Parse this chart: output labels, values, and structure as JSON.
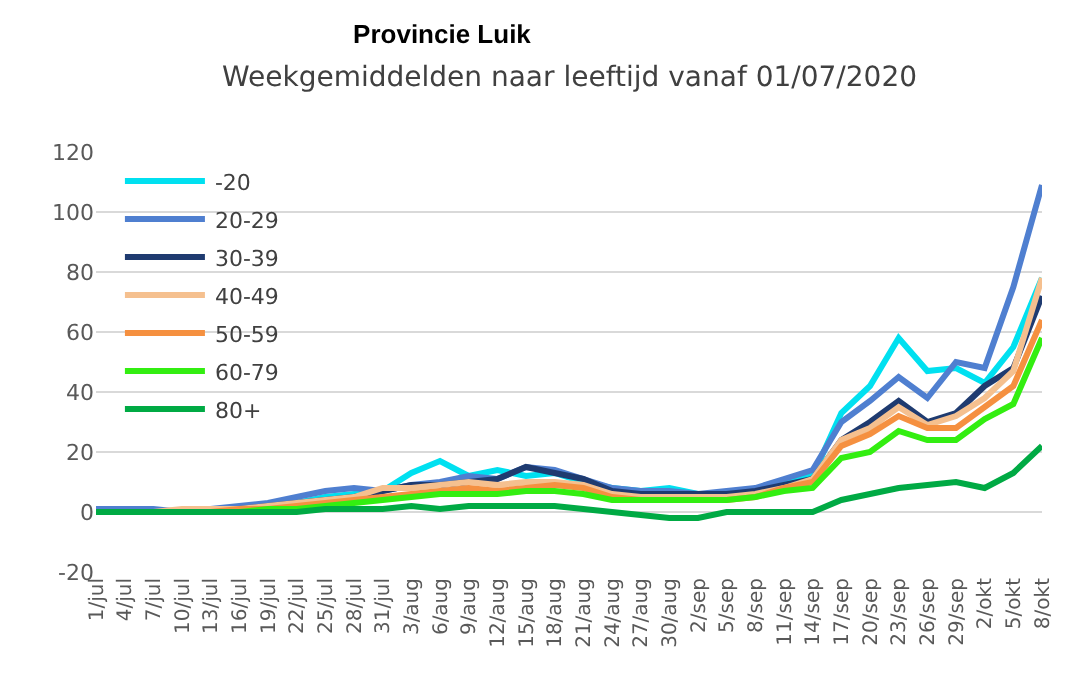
{
  "chart_data": {
    "type": "line",
    "title": "Provincie Luik",
    "subtitle": "Weekgemiddelden naar leeftijd vanaf 01/07/2020",
    "categories": [
      "1/jul",
      "4/jul",
      "7/jul",
      "10/jul",
      "13/jul",
      "16/jul",
      "19/jul",
      "22/jul",
      "25/jul",
      "28/jul",
      "31/jul",
      "3/aug",
      "6/aug",
      "9/aug",
      "12/aug",
      "15/aug",
      "18/aug",
      "21/aug",
      "24/aug",
      "27/aug",
      "30/aug",
      "2/sep",
      "5/sep",
      "8/sep",
      "11/sep",
      "14/sep",
      "17/sep",
      "20/sep",
      "23/sep",
      "26/sep",
      "29/sep",
      "2/okt",
      "5/okt",
      "8/okt"
    ],
    "series": [
      {
        "name": "-20",
        "color": "#00e0f0",
        "values": [
          null,
          null,
          null,
          null,
          null,
          null,
          2,
          3,
          5,
          6,
          7,
          13,
          17,
          12,
          14,
          12,
          13,
          10,
          8,
          7,
          8,
          6,
          6,
          7,
          10,
          12,
          33,
          42,
          58,
          47,
          48,
          43,
          55,
          78
        ]
      },
      {
        "name": "20-29",
        "color": "#4f7fd0",
        "values": [
          1,
          1,
          1,
          0,
          1,
          2,
          3,
          5,
          7,
          8,
          7,
          9,
          10,
          12,
          11,
          15,
          14,
          11,
          8,
          7,
          7,
          6,
          7,
          8,
          11,
          14,
          30,
          37,
          45,
          38,
          50,
          48,
          75,
          109
        ]
      },
      {
        "name": "30-39",
        "color": "#1f3b70",
        "values": [
          0,
          0,
          0,
          0,
          1,
          1,
          2,
          3,
          4,
          5,
          7,
          9,
          9,
          10,
          11,
          15,
          13,
          11,
          7,
          6,
          6,
          6,
          6,
          7,
          9,
          11,
          24,
          30,
          37,
          30,
          33,
          42,
          48,
          72
        ]
      },
      {
        "name": "40-49",
        "color": "#f5c08f",
        "values": [
          0,
          0,
          0,
          1,
          1,
          1,
          2,
          3,
          4,
          5,
          8,
          8,
          9,
          10,
          9,
          10,
          10,
          9,
          6,
          5,
          5,
          5,
          5,
          6,
          8,
          11,
          24,
          28,
          35,
          29,
          32,
          38,
          47,
          78
        ]
      },
      {
        "name": "50-59",
        "color": "#f59040",
        "values": [
          0,
          0,
          0,
          0,
          0,
          1,
          1,
          2,
          3,
          4,
          5,
          6,
          7,
          8,
          7,
          8,
          9,
          8,
          5,
          4,
          4,
          4,
          4,
          5,
          8,
          10,
          22,
          26,
          32,
          28,
          28,
          35,
          42,
          64
        ]
      },
      {
        "name": "60-79",
        "color": "#33ee11",
        "values": [
          null,
          null,
          null,
          null,
          0,
          0,
          1,
          1,
          2,
          3,
          4,
          5,
          6,
          6,
          6,
          7,
          7,
          6,
          4,
          4,
          4,
          4,
          4,
          5,
          7,
          8,
          18,
          20,
          27,
          24,
          24,
          31,
          36,
          58
        ]
      },
      {
        "name": "80+",
        "color": "#00aa44",
        "values": [
          0,
          0,
          0,
          0,
          0,
          0,
          0,
          0,
          1,
          1,
          1,
          2,
          1,
          2,
          2,
          2,
          2,
          1,
          0,
          -1,
          -2,
          -2,
          0,
          0,
          0,
          0,
          4,
          6,
          8,
          9,
          10,
          8,
          13,
          22
        ]
      }
    ],
    "ylim": [
      -20,
      120
    ],
    "yticks": [
      -20,
      0,
      20,
      40,
      60,
      80,
      100,
      120
    ],
    "grid": "y",
    "legend": "top left",
    "marker": "none",
    "line_style": "solid"
  }
}
